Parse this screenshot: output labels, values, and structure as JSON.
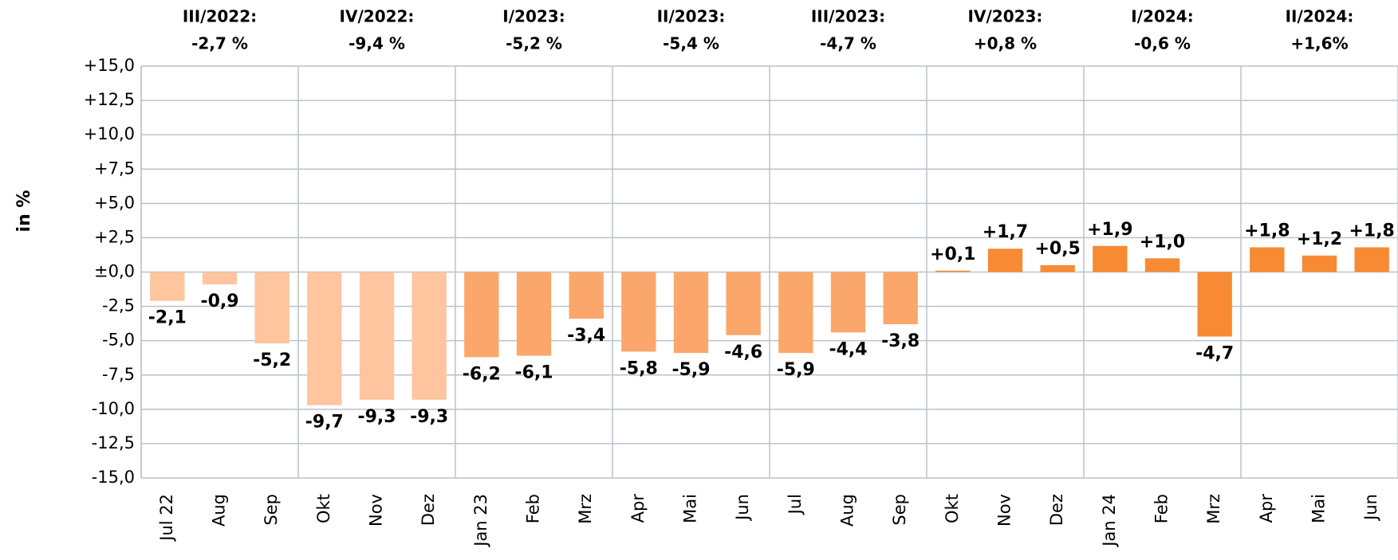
{
  "chart_data": {
    "type": "bar",
    "y_label": "in %",
    "categories": [
      "Jul 22",
      "Aug",
      "Sep",
      "Okt",
      "Nov",
      "Dez",
      "Jan 23",
      "Feb",
      "Mrz",
      "Apr",
      "Mai",
      "Jun",
      "Jul",
      "Aug",
      "Sep",
      "Okt",
      "Nov",
      "Dez",
      "Jan 24",
      "Feb",
      "Mrz",
      "Apr",
      "Mai",
      "Jun"
    ],
    "values": [
      -2.1,
      -0.9,
      -5.2,
      -9.7,
      -9.3,
      -9.3,
      -6.2,
      -6.1,
      -3.4,
      -5.8,
      -5.9,
      -4.6,
      -5.9,
      -4.4,
      -3.8,
      0.1,
      1.7,
      0.5,
      1.9,
      1.0,
      -4.7,
      1.8,
      1.2,
      1.8
    ],
    "value_labels": [
      "-2,1",
      "-0,9",
      "-5,2",
      "-9,7",
      "-9,3",
      "-9,3",
      "-6,2",
      "-6,1",
      "-3,4",
      "-5,8",
      "-5,9",
      "-4,6",
      "-5,9",
      "-4,4",
      "-3,8",
      "+0,1",
      "+1,7",
      "+0,5",
      "+1,9",
      "+1,0",
      "-4,7",
      "+1,8",
      "+1,2",
      "+1,8"
    ],
    "colors": [
      "#fec59f",
      "#fec59f",
      "#fec59f",
      "#fec59f",
      "#fec59f",
      "#fec59f",
      "#fba76b",
      "#fba76b",
      "#fba76b",
      "#fba76b",
      "#fba76b",
      "#fba76b",
      "#fba76b",
      "#fba76b",
      "#fba76b",
      "#f78a33",
      "#f78a33",
      "#f78a33",
      "#f78a33",
      "#f78a33",
      "#f78a33",
      "#f78a33",
      "#f78a33",
      "#f78a33"
    ],
    "quarters": {
      "categories": [
        "III/2022:",
        "IV/2022:",
        "I/2023:",
        "II/2023:",
        "III/2023:",
        "IV/2023:",
        "I/2024:",
        "II/2024:"
      ],
      "values": [
        -2.7,
        -9.4,
        -5.2,
        -5.4,
        -4.7,
        0.8,
        -0.6,
        1.6
      ],
      "value_labels": [
        "-2,7 %",
        "-9,4 %",
        "-5,2 %",
        "-5,4 %",
        "-4,7 %",
        "+0,8 %",
        "-0,6 %",
        "+1,6%"
      ]
    },
    "ylim": [
      -15,
      15
    ],
    "yticks": [
      {
        "value": 15,
        "label": "+15,0"
      },
      {
        "value": 12.5,
        "label": "+12,5"
      },
      {
        "value": 10,
        "label": "+10,0"
      },
      {
        "value": 7.5,
        "label": "+7,5"
      },
      {
        "value": 5,
        "label": "+5,0"
      },
      {
        "value": 2.5,
        "label": "+2,5"
      },
      {
        "value": 0,
        "label": "±0,0"
      },
      {
        "value": -2.5,
        "label": "-2,5"
      },
      {
        "value": -5,
        "label": "-5,0"
      },
      {
        "value": -7.5,
        "label": "-7,5"
      },
      {
        "value": -10,
        "label": "-10,0"
      },
      {
        "value": -12.5,
        "label": "-12,5"
      },
      {
        "value": -15,
        "label": "-15,0"
      }
    ],
    "grid": true
  }
}
